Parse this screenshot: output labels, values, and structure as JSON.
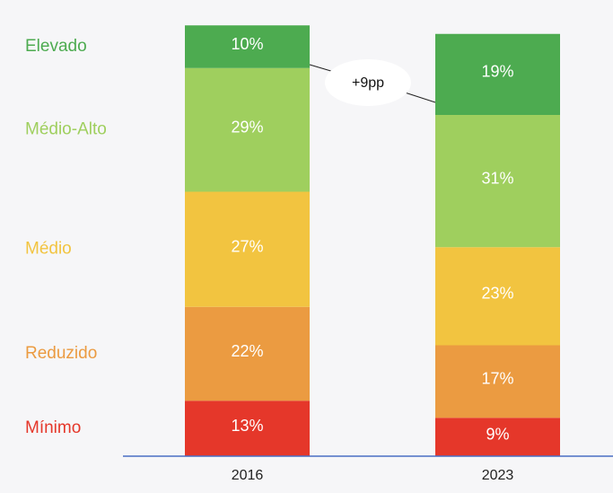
{
  "chart_data": {
    "type": "stacked-bar",
    "categories": [
      "2016",
      "2023"
    ],
    "series": [
      {
        "name": "Mínimo",
        "color": "#e5372a",
        "values": [
          13,
          9
        ],
        "value_labels": [
          "13%",
          "9%"
        ]
      },
      {
        "name": "Reduzido",
        "color": "#eb9b41",
        "values": [
          22,
          17
        ],
        "value_labels": [
          "22%",
          "17%"
        ]
      },
      {
        "name": "Médio",
        "color": "#f2c440",
        "values": [
          27,
          23
        ],
        "value_labels": [
          "27%",
          "23%"
        ]
      },
      {
        "name": "Médio-Alto",
        "color": "#9fcf5e",
        "values": [
          29,
          31
        ],
        "value_labels": [
          "29%",
          "31%"
        ]
      },
      {
        "name": "Elevado",
        "color": "#4dab50",
        "values": [
          10,
          19
        ],
        "value_labels": [
          "10%",
          "19%"
        ]
      }
    ],
    "annotation": "+9pp"
  }
}
